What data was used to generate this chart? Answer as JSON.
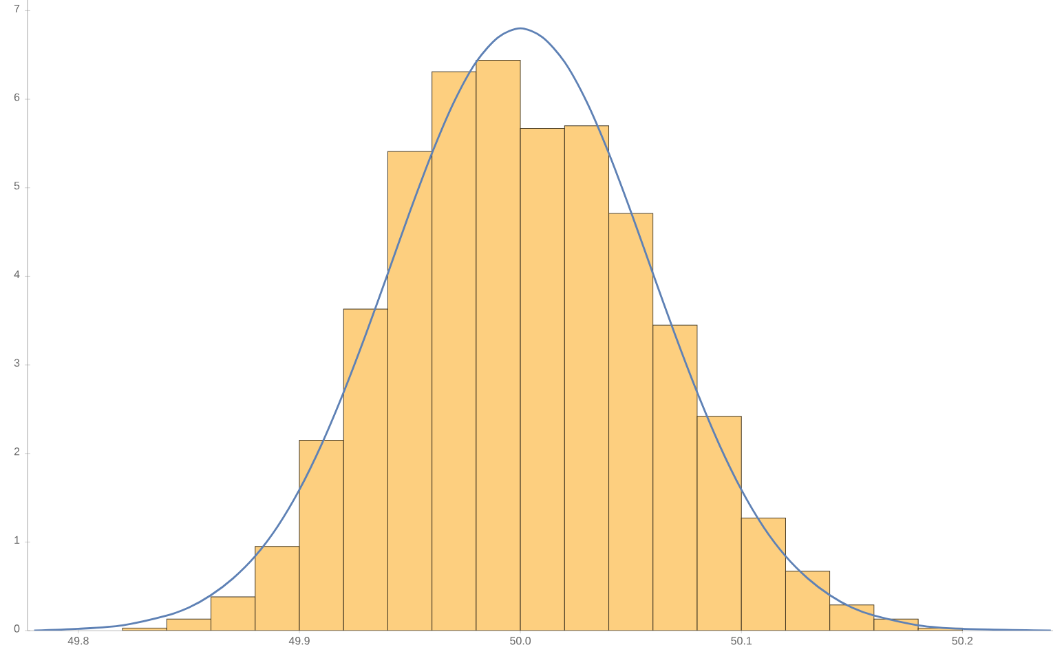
{
  "chart_data": {
    "type": "histogram",
    "bins": [
      49.82,
      49.84,
      49.86,
      49.88,
      49.9,
      49.92,
      49.94,
      49.96,
      49.98,
      50.0,
      50.02,
      50.04,
      50.06,
      50.08,
      50.1,
      50.12,
      50.14,
      50.16,
      50.18,
      50.2
    ],
    "values": [
      0.03,
      0.13,
      0.38,
      0.95,
      2.15,
      3.63,
      5.41,
      6.31,
      6.44,
      5.67,
      5.7,
      4.71,
      3.45,
      2.42,
      1.27,
      0.67,
      0.29,
      0.13,
      0.03
    ],
    "color": "#fdcf7f",
    "series": [
      {
        "type": "line",
        "color": "#5e81b5",
        "x": [
          49.78,
          49.8,
          49.82,
          49.84,
          49.85,
          49.86,
          49.87,
          49.88,
          49.89,
          49.9,
          49.91,
          49.92,
          49.93,
          49.94,
          49.95,
          49.96,
          49.97,
          49.98,
          49.99,
          50.0,
          50.01,
          50.02,
          50.03,
          50.04,
          50.05,
          50.06,
          50.07,
          50.08,
          50.09,
          50.1,
          50.11,
          50.12,
          50.13,
          50.14,
          50.15,
          50.16,
          50.18,
          50.2,
          50.24
        ],
        "values": [
          0.0,
          0.02,
          0.06,
          0.17,
          0.26,
          0.4,
          0.59,
          0.84,
          1.17,
          1.59,
          2.1,
          2.69,
          3.34,
          4.03,
          4.73,
          5.39,
          5.97,
          6.42,
          6.7,
          6.8,
          6.7,
          6.42,
          5.97,
          5.39,
          4.73,
          4.03,
          3.34,
          2.69,
          2.1,
          1.59,
          1.17,
          0.84,
          0.59,
          0.4,
          0.26,
          0.17,
          0.06,
          0.02,
          0.0
        ]
      }
    ],
    "xlim": [
      49.777,
      50.241
    ],
    "ylim": [
      0,
      7.12
    ],
    "xticks": [
      49.8,
      49.9,
      {
        "value": 50.0,
        "label": "50.0"
      },
      50.1,
      50.2
    ],
    "yticks": [
      0,
      1,
      2,
      3,
      4,
      5,
      6,
      7
    ],
    "grid": false
  }
}
